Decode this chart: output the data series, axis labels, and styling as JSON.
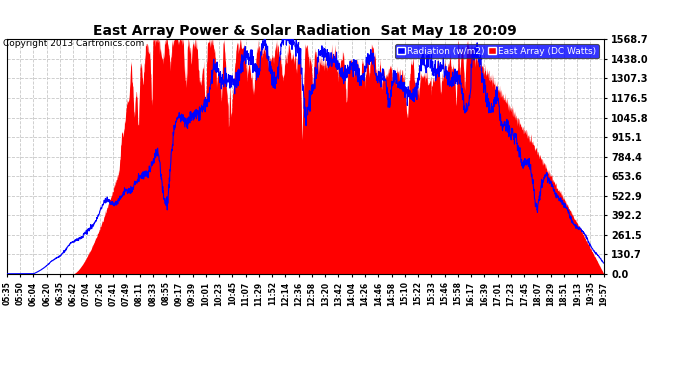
{
  "title": "East Array Power & Solar Radiation  Sat May 18 20:09",
  "copyright": "Copyright 2013 Cartronics.com",
  "legend_labels": [
    "Radiation (w/m2)",
    "East Array (DC Watts)"
  ],
  "ymax": 1568.7,
  "yticks": [
    0.0,
    130.7,
    261.5,
    392.2,
    522.9,
    653.6,
    784.4,
    915.1,
    1045.8,
    1176.5,
    1307.3,
    1438.0,
    1568.7
  ],
  "bg_color": "#ffffff",
  "grid_color": "#c8c8c8",
  "x_times": [
    "05:35",
    "05:50",
    "06:04",
    "06:20",
    "06:35",
    "06:42",
    "07:04",
    "07:26",
    "07:41",
    "07:49",
    "08:11",
    "08:33",
    "08:55",
    "09:17",
    "09:39",
    "10:01",
    "10:23",
    "10:45",
    "11:07",
    "11:29",
    "11:52",
    "12:14",
    "12:36",
    "12:58",
    "13:20",
    "13:42",
    "14:04",
    "14:26",
    "14:46",
    "14:58",
    "15:10",
    "15:22",
    "15:33",
    "15:46",
    "15:58",
    "16:17",
    "16:39",
    "17:01",
    "17:23",
    "17:45",
    "18:07",
    "18:29",
    "18:51",
    "19:13",
    "19:35",
    "19:57"
  ],
  "n_fine": 2000,
  "seed": 42
}
